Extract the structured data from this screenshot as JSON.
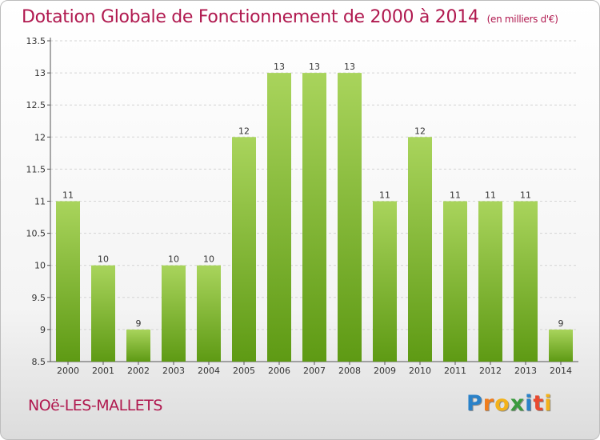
{
  "title": "Dotation Globale de Fonctionnement de 2000 à 2014",
  "unit": "(en milliers d'€)",
  "commune": "NOë-LES-MALLETS",
  "logo": {
    "text": "Proxiti",
    "letters": [
      "P",
      "r",
      "o",
      "x",
      "i",
      "t",
      "i"
    ],
    "colors": [
      "#2a82c9",
      "#f07d1c",
      "#f3b21a",
      "#3a9b3e",
      "#2a82c9",
      "#e94a2f",
      "#f3b21a"
    ]
  },
  "colors": {
    "bar_light": "#a9d45c",
    "bar_dark": "#5e9a14",
    "title": "#b0194f"
  },
  "chart_data": {
    "type": "bar",
    "title": "Dotation Globale de Fonctionnement de 2000 à 2014",
    "subtitle": "(en milliers d'€)",
    "categories": [
      "2000",
      "2001",
      "2002",
      "2003",
      "2004",
      "2005",
      "2006",
      "2007",
      "2008",
      "2009",
      "2010",
      "2011",
      "2012",
      "2013",
      "2014"
    ],
    "values": [
      11,
      10,
      9,
      10,
      10,
      12,
      13,
      13,
      13,
      11,
      12,
      11,
      11,
      11,
      9
    ],
    "data_labels": [
      "11",
      "10",
      "9",
      "10",
      "10",
      "12",
      "13",
      "13",
      "13",
      "11",
      "12",
      "11",
      "11",
      "11",
      "9"
    ],
    "yticks": [
      "8.5",
      "9",
      "9.5",
      "10",
      "10.5",
      "11",
      "11.5",
      "12",
      "12.5",
      "13",
      "13.5"
    ],
    "ylim": [
      8.5,
      13.5
    ],
    "xlabel": "",
    "ylabel": "",
    "grid": true,
    "legend": "none"
  }
}
